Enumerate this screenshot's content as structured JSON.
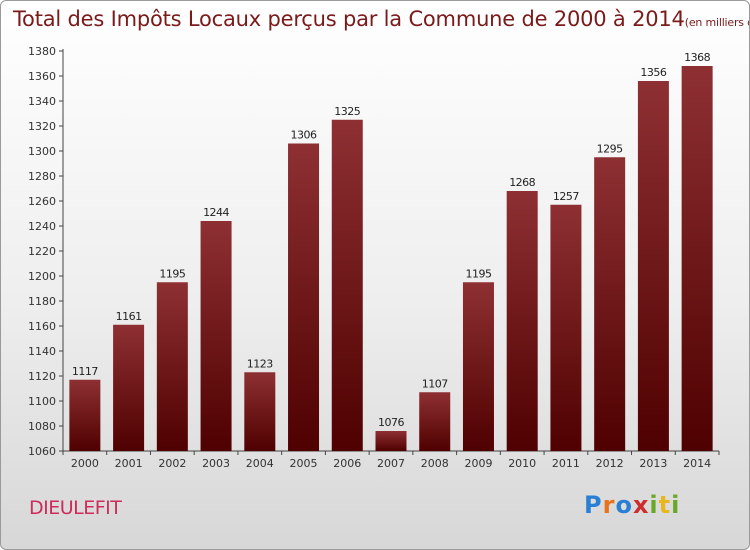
{
  "title": "Total des Impôts Locaux perçus par la Commune de 2000 à 2014",
  "unit_note": "(en milliers d'€)",
  "commune": "DIEULEFIT",
  "brand": {
    "letters": [
      "P",
      "r",
      "o",
      "x",
      "i",
      "t",
      "i"
    ],
    "colors": [
      "#2a7fd4",
      "#e8731c",
      "#2a7fd4",
      "#cc2d2d",
      "#6aa82a",
      "#e8b71c",
      "#6aa82a"
    ]
  },
  "colors": {
    "bar_light": "#8e3033",
    "bar_dark": "#4f0000",
    "title": "#7a1a1a",
    "commune": "#cc2d5a"
  },
  "chart_data": {
    "type": "bar",
    "title": "Total des Impôts Locaux perçus par la Commune de 2000 à 2014",
    "xlabel": "",
    "ylabel": "",
    "categories": [
      "2000",
      "2001",
      "2002",
      "2003",
      "2004",
      "2005",
      "2006",
      "2007",
      "2008",
      "2009",
      "2010",
      "2011",
      "2012",
      "2013",
      "2014"
    ],
    "values": [
      1117,
      1161,
      1195,
      1244,
      1123,
      1306,
      1325,
      1076,
      1107,
      1195,
      1268,
      1257,
      1295,
      1356,
      1368
    ],
    "ylim": [
      1060,
      1380
    ],
    "yticks": [
      1060,
      1080,
      1100,
      1120,
      1140,
      1160,
      1180,
      1200,
      1220,
      1240,
      1260,
      1280,
      1300,
      1320,
      1340,
      1360,
      1380
    ],
    "grid": false
  }
}
